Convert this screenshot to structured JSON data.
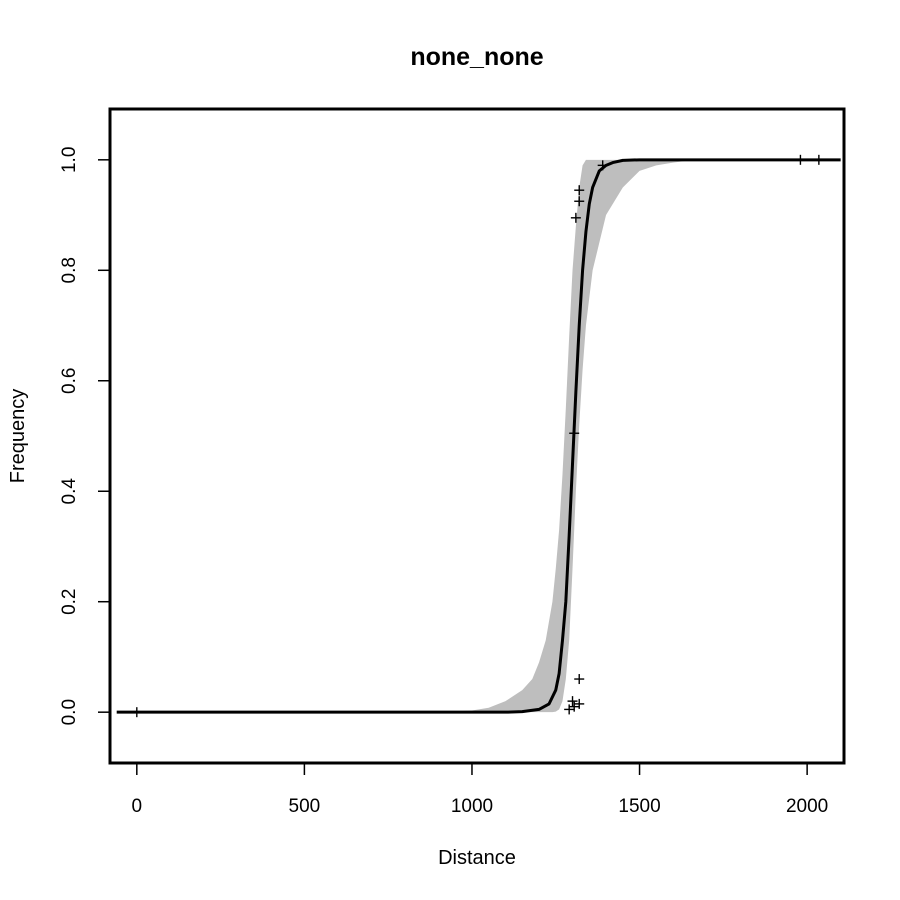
{
  "chart_data": {
    "type": "line",
    "title": "none_none",
    "xlabel": "Distance",
    "ylabel": "Frequency",
    "xlim": [
      -80,
      2110
    ],
    "ylim": [
      -0.092,
      1.092
    ],
    "x_ticks": [
      0,
      500,
      1000,
      1500,
      2000
    ],
    "y_ticks": [
      0.0,
      0.2,
      0.4,
      0.6,
      0.8,
      1.0
    ],
    "x_tick_labels": [
      "0",
      "500",
      "1000",
      "1500",
      "2000"
    ],
    "y_tick_labels": [
      "0.0",
      "0.2",
      "0.4",
      "0.6",
      "0.8",
      "1.0"
    ],
    "grid": false,
    "colors": {
      "fit": "#000000",
      "band": "#bebebe",
      "points": "#000000",
      "frame": "#000000"
    },
    "fit_curve": {
      "x": [
        -60,
        900,
        1000,
        1100,
        1150,
        1200,
        1230,
        1250,
        1260,
        1270,
        1280,
        1290,
        1300,
        1310,
        1320,
        1330,
        1340,
        1350,
        1360,
        1380,
        1400,
        1420,
        1450,
        1500,
        2100
      ],
      "y": [
        0.0,
        0.0,
        0.0,
        0.0,
        0.001,
        0.005,
        0.015,
        0.04,
        0.07,
        0.13,
        0.2,
        0.32,
        0.45,
        0.58,
        0.7,
        0.8,
        0.87,
        0.92,
        0.95,
        0.98,
        0.99,
        0.995,
        0.999,
        1.0,
        1.0
      ]
    },
    "confidence_band": {
      "x": [
        900,
        1000,
        1050,
        1100,
        1150,
        1180,
        1200,
        1220,
        1240,
        1250,
        1260,
        1270,
        1280,
        1290,
        1300,
        1310,
        1320,
        1330,
        1340,
        1350,
        1360,
        1380,
        1400,
        1450,
        1500,
        1550,
        1600,
        1650,
        1700
      ],
      "lower": [
        0.0,
        0.0,
        0.0,
        0.0,
        0.0,
        0.0,
        0.0,
        0.0,
        0.0,
        0.001,
        0.005,
        0.02,
        0.06,
        0.13,
        0.26,
        0.4,
        0.52,
        0.62,
        0.7,
        0.75,
        0.8,
        0.85,
        0.9,
        0.95,
        0.98,
        0.99,
        0.995,
        0.999,
        1.0
      ],
      "upper": [
        0.0,
        0.003,
        0.008,
        0.02,
        0.04,
        0.06,
        0.09,
        0.13,
        0.2,
        0.26,
        0.33,
        0.43,
        0.55,
        0.68,
        0.8,
        0.88,
        0.95,
        0.99,
        1.0,
        1.0,
        1.0,
        1.0,
        1.0,
        1.0,
        1.0,
        1.0,
        1.0,
        1.0,
        1.0
      ]
    },
    "points": [
      {
        "x": 0,
        "y": 0.0
      },
      {
        "x": 1290,
        "y": 0.005
      },
      {
        "x": 1300,
        "y": 0.02
      },
      {
        "x": 1305,
        "y": 0.01
      },
      {
        "x": 1320,
        "y": 0.015
      },
      {
        "x": 1320,
        "y": 0.06
      },
      {
        "x": 1305,
        "y": 0.505
      },
      {
        "x": 1310,
        "y": 0.895
      },
      {
        "x": 1320,
        "y": 0.925
      },
      {
        "x": 1320,
        "y": 0.945
      },
      {
        "x": 1390,
        "y": 0.99
      },
      {
        "x": 1980,
        "y": 1.0
      },
      {
        "x": 2035,
        "y": 1.0
      }
    ]
  }
}
